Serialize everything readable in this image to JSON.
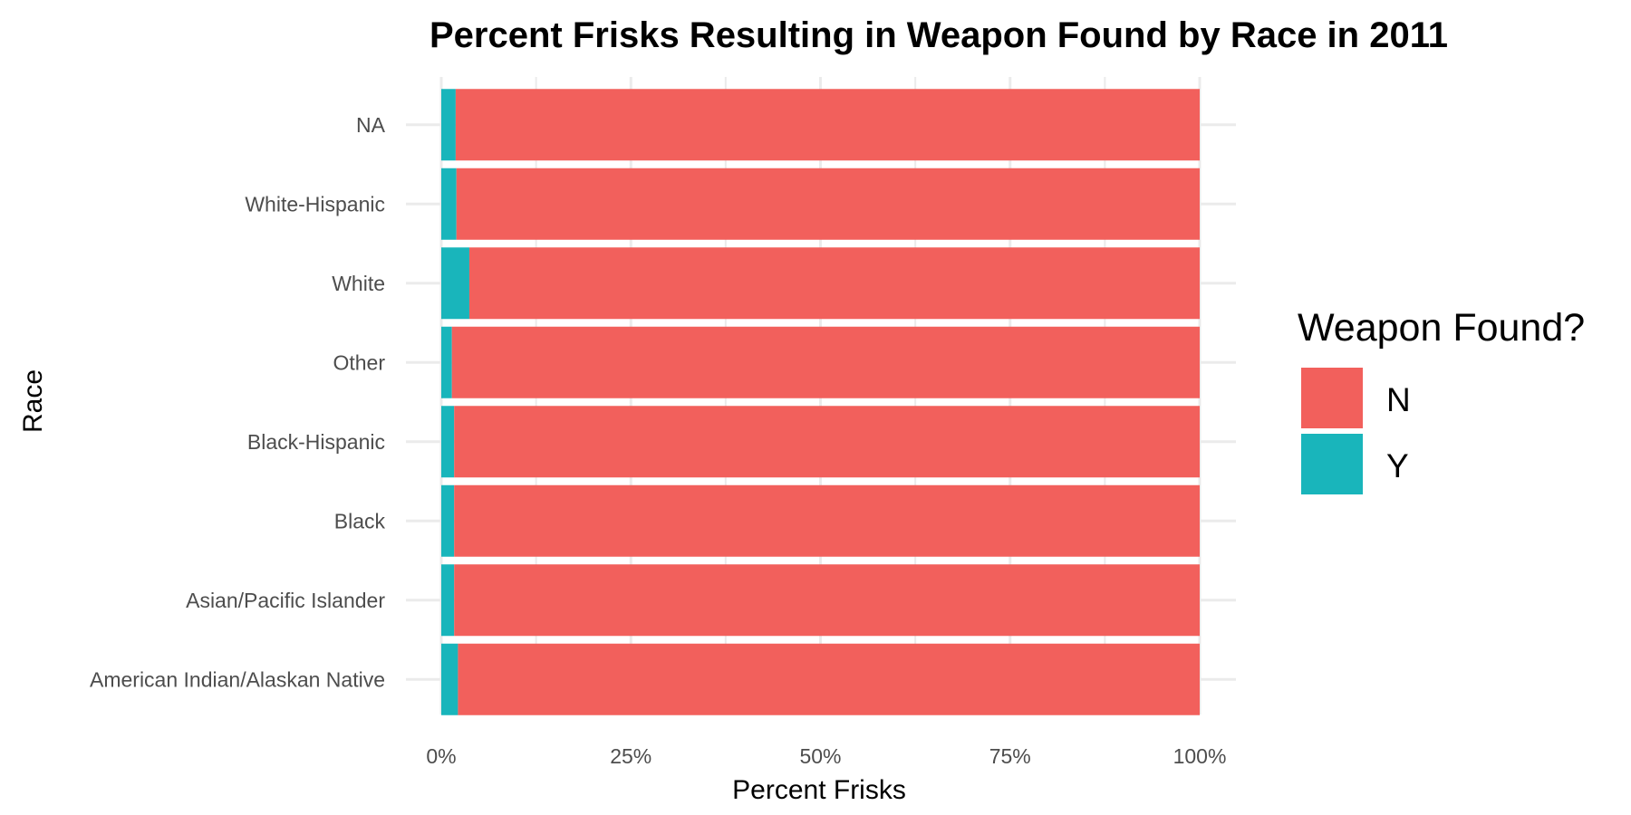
{
  "chart_data": {
    "type": "bar",
    "orientation": "horizontal",
    "stacked": true,
    "percent": true,
    "title": "Percent Frisks Resulting in Weapon Found by Race in 2011",
    "xlabel": "Percent Frisks",
    "ylabel": "Race",
    "xlim": [
      0,
      1
    ],
    "x_ticks": [
      0,
      0.25,
      0.5,
      0.75,
      1
    ],
    "x_tick_labels": [
      "0%",
      "25%",
      "50%",
      "75%",
      "100%"
    ],
    "grid": true,
    "categories": [
      "American Indian/Alaskan Native",
      "Asian/Pacific Islander",
      "Black",
      "Black-Hispanic",
      "Other",
      "White",
      "White-Hispanic",
      "NA"
    ],
    "series": [
      {
        "name": "Y",
        "color": "#19B5BB",
        "values": [
          0.022,
          0.017,
          0.017,
          0.017,
          0.014,
          0.037,
          0.02,
          0.019
        ]
      },
      {
        "name": "N",
        "color": "#F2605C",
        "values": [
          0.978,
          0.983,
          0.983,
          0.983,
          0.986,
          0.963,
          0.98,
          0.981
        ]
      }
    ],
    "legend": {
      "title": "Weapon Found?",
      "position": "right",
      "entries": [
        {
          "label": "N",
          "color": "#F2605C"
        },
        {
          "label": "Y",
          "color": "#19B5BB"
        }
      ]
    }
  }
}
